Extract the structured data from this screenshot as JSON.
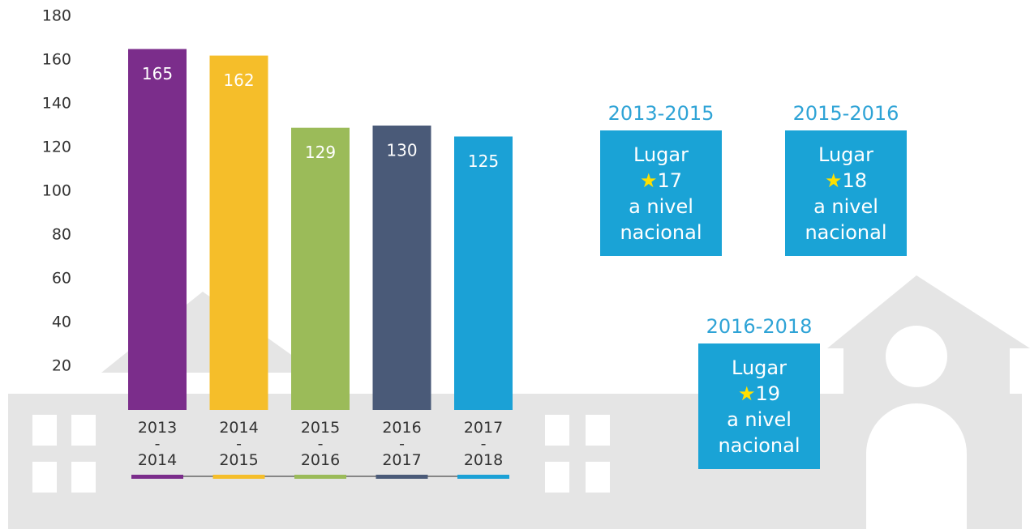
{
  "chart_data": {
    "type": "bar",
    "categories": [
      "2013 - 2014",
      "2014 - 2015",
      "2015 - 2016",
      "2016 - 2017",
      "2017 - 2018"
    ],
    "values": [
      165,
      162,
      129,
      130,
      125
    ],
    "colors": [
      "#7b2d8b",
      "#f5be2a",
      "#9bbb59",
      "#4a5a78",
      "#1ba1d6"
    ],
    "ylim": [
      0,
      180
    ],
    "yticks": [
      20,
      40,
      60,
      80,
      100,
      120,
      140,
      160,
      180
    ],
    "grid": false,
    "annotations": [
      {
        "title": "2013-2015",
        "lines": [
          "Lugar",
          "17",
          "a nivel",
          "nacional"
        ]
      },
      {
        "title": "2015-2016",
        "lines": [
          "Lugar",
          "18",
          "a nivel",
          "nacional"
        ]
      },
      {
        "title": "2016-2018",
        "lines": [
          "Lugar",
          "19",
          "a nivel",
          "nacional"
        ]
      }
    ]
  }
}
